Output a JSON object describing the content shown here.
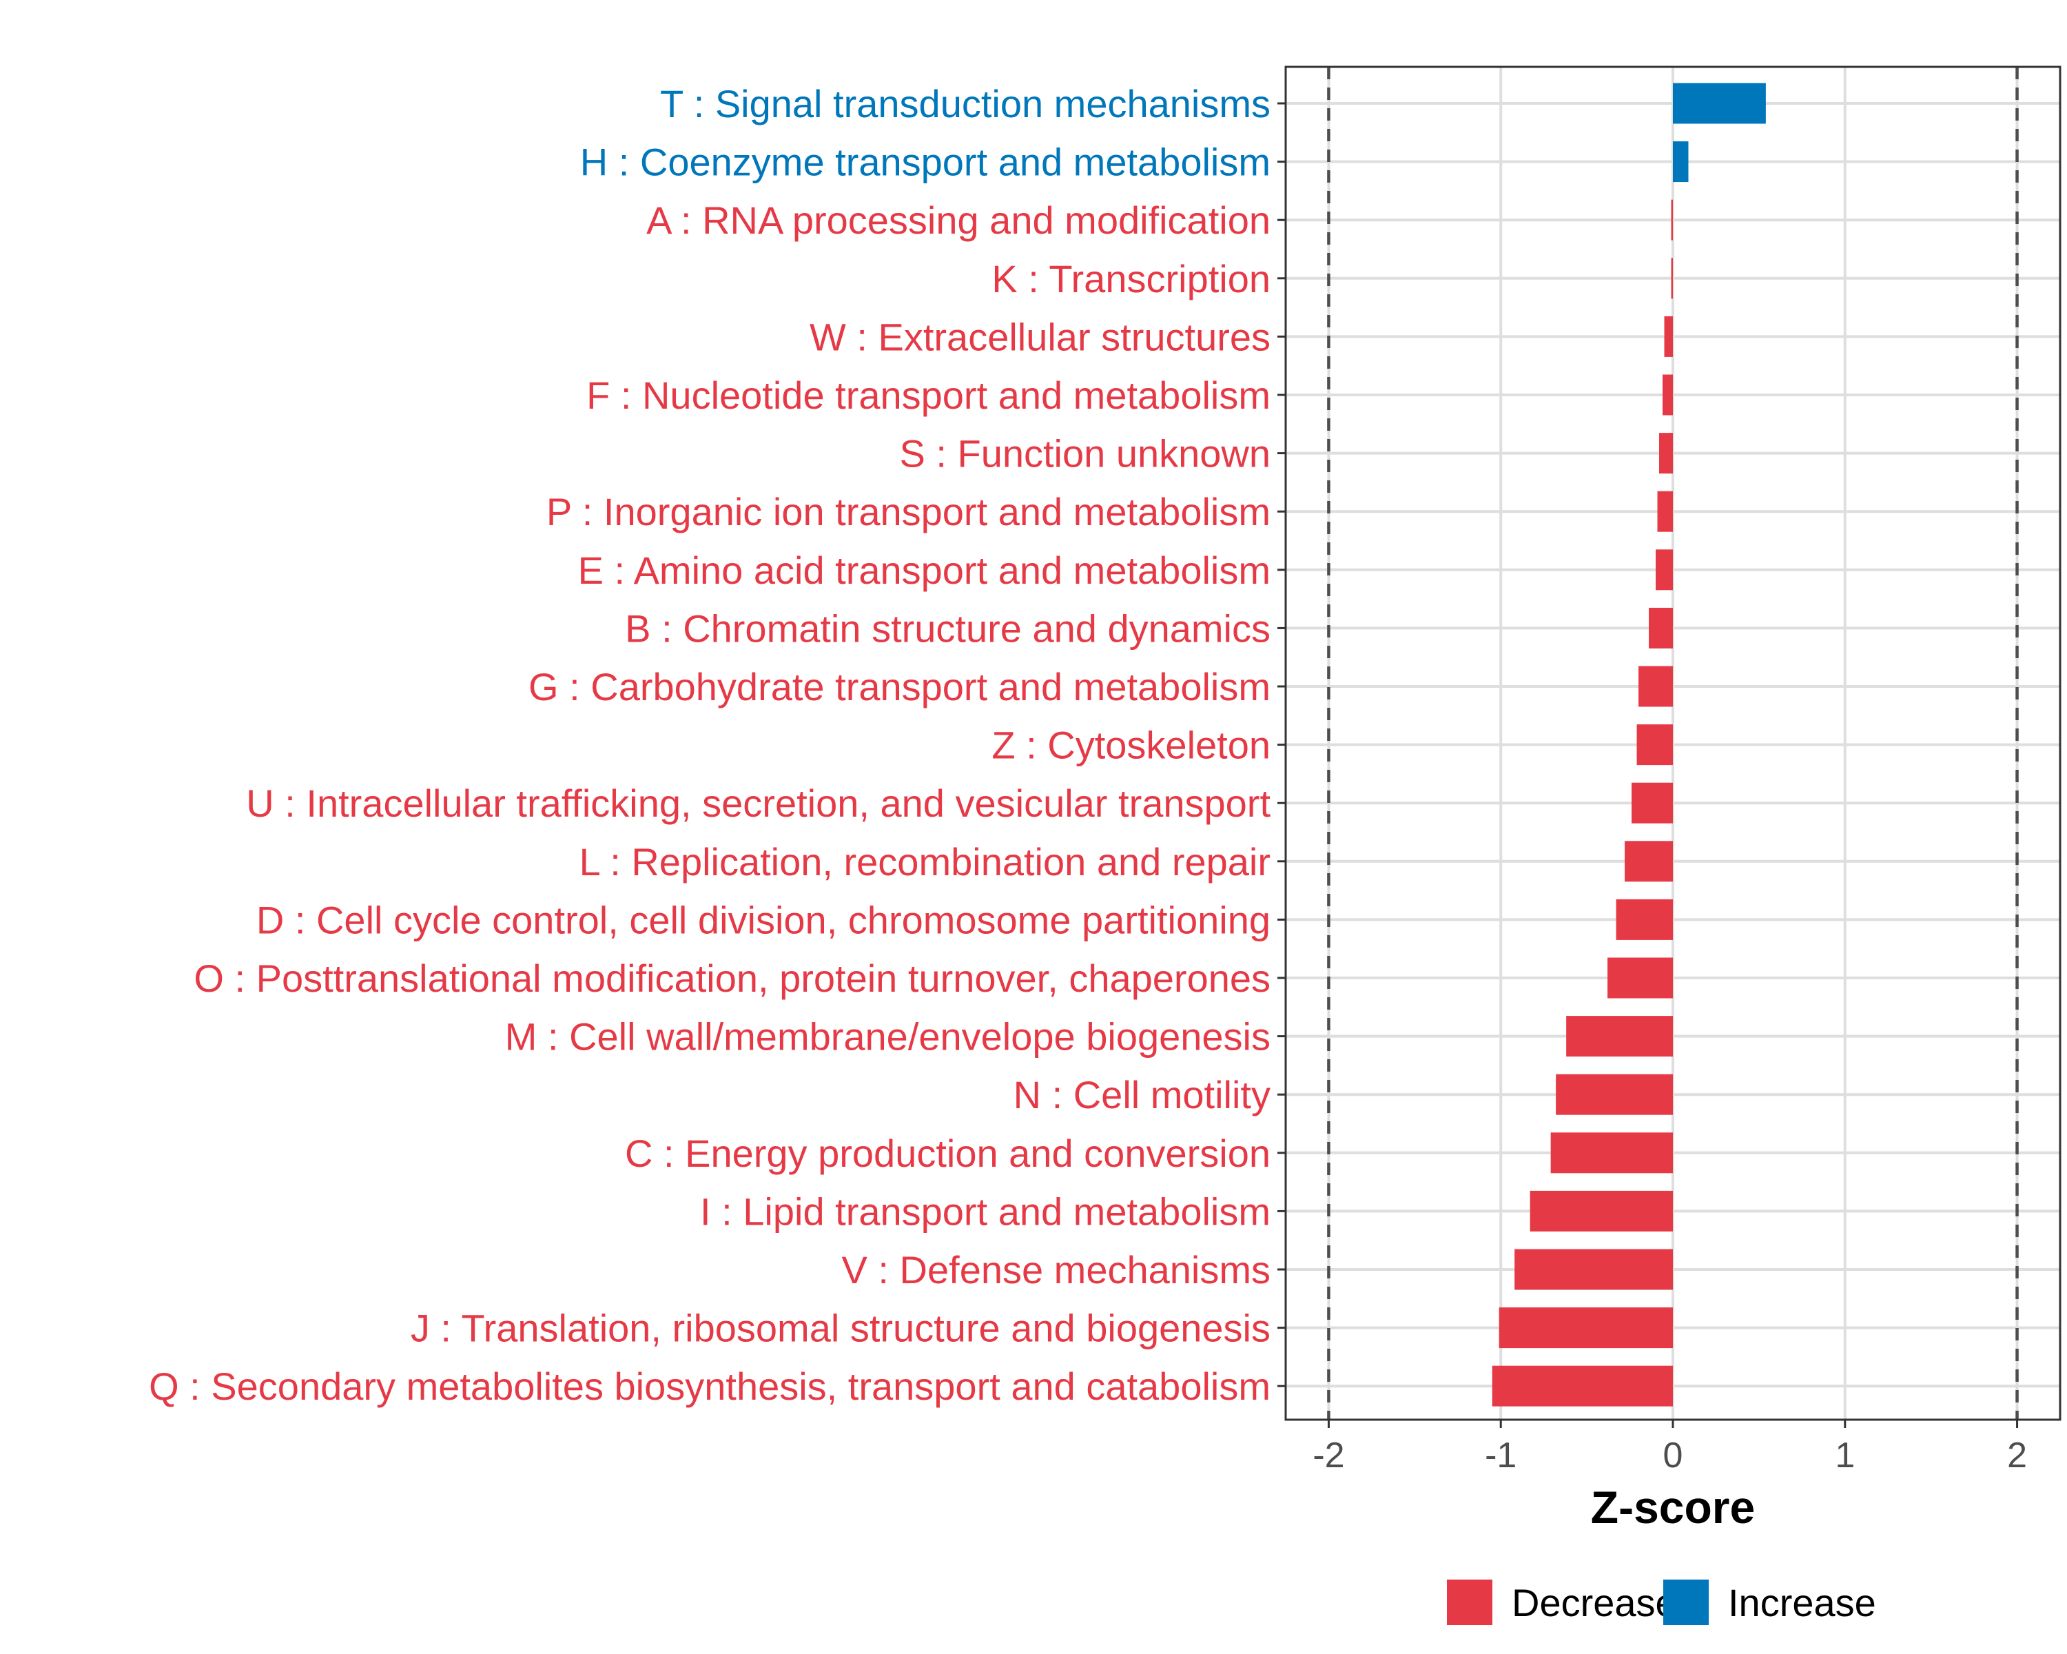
{
  "chart_data": {
    "type": "bar",
    "orientation": "horizontal",
    "xlabel": "Z-score",
    "ylabel": "",
    "xlim": [
      -2.25,
      2.25
    ],
    "x_ticks": [
      -2,
      -1,
      0,
      1,
      2
    ],
    "x_tick_labels": [
      "-2",
      "-1",
      "0",
      "1",
      "2"
    ],
    "reference_lines": [
      -2,
      2
    ],
    "grid": true,
    "legend_position": "bottom",
    "colors": {
      "Decrease": "#e63946",
      "Increase": "#0077bb"
    },
    "legend": [
      {
        "name": "Decrease",
        "color": "#e63946"
      },
      {
        "name": "Increase",
        "color": "#0077bb"
      }
    ],
    "categories": [
      {
        "label": "T : Signal transduction mechanisms",
        "value": 0.54,
        "direction": "Increase"
      },
      {
        "label": "H : Coenzyme transport and metabolism",
        "value": 0.09,
        "direction": "Increase"
      },
      {
        "label": "A : RNA processing and modification",
        "value": -0.01,
        "direction": "Decrease"
      },
      {
        "label": "K : Transcription",
        "value": -0.01,
        "direction": "Decrease"
      },
      {
        "label": "W : Extracellular structures",
        "value": -0.05,
        "direction": "Decrease"
      },
      {
        "label": "F : Nucleotide transport and metabolism",
        "value": -0.06,
        "direction": "Decrease"
      },
      {
        "label": "S : Function unknown",
        "value": -0.08,
        "direction": "Decrease"
      },
      {
        "label": "P : Inorganic ion transport and metabolism",
        "value": -0.09,
        "direction": "Decrease"
      },
      {
        "label": "E : Amino acid transport and metabolism",
        "value": -0.1,
        "direction": "Decrease"
      },
      {
        "label": "B : Chromatin structure and dynamics",
        "value": -0.14,
        "direction": "Decrease"
      },
      {
        "label": "G : Carbohydrate transport and metabolism",
        "value": -0.2,
        "direction": "Decrease"
      },
      {
        "label": "Z : Cytoskeleton",
        "value": -0.21,
        "direction": "Decrease"
      },
      {
        "label": "U : Intracellular trafficking, secretion, and vesicular transport",
        "value": -0.24,
        "direction": "Decrease"
      },
      {
        "label": "L : Replication, recombination and repair",
        "value": -0.28,
        "direction": "Decrease"
      },
      {
        "label": "D : Cell cycle control, cell division, chromosome partitioning",
        "value": -0.33,
        "direction": "Decrease"
      },
      {
        "label": "O : Posttranslational modification, protein turnover, chaperones",
        "value": -0.38,
        "direction": "Decrease"
      },
      {
        "label": "M : Cell wall/membrane/envelope biogenesis",
        "value": -0.62,
        "direction": "Decrease"
      },
      {
        "label": "N : Cell motility",
        "value": -0.68,
        "direction": "Decrease"
      },
      {
        "label": "C : Energy production and conversion",
        "value": -0.71,
        "direction": "Decrease"
      },
      {
        "label": "I : Lipid transport and metabolism",
        "value": -0.83,
        "direction": "Decrease"
      },
      {
        "label": "V : Defense mechanisms",
        "value": -0.92,
        "direction": "Decrease"
      },
      {
        "label": "J : Translation, ribosomal structure and biogenesis",
        "value": -1.01,
        "direction": "Decrease"
      },
      {
        "label": "Q : Secondary metabolites biosynthesis, transport and catabolism",
        "value": -1.05,
        "direction": "Decrease"
      }
    ]
  }
}
